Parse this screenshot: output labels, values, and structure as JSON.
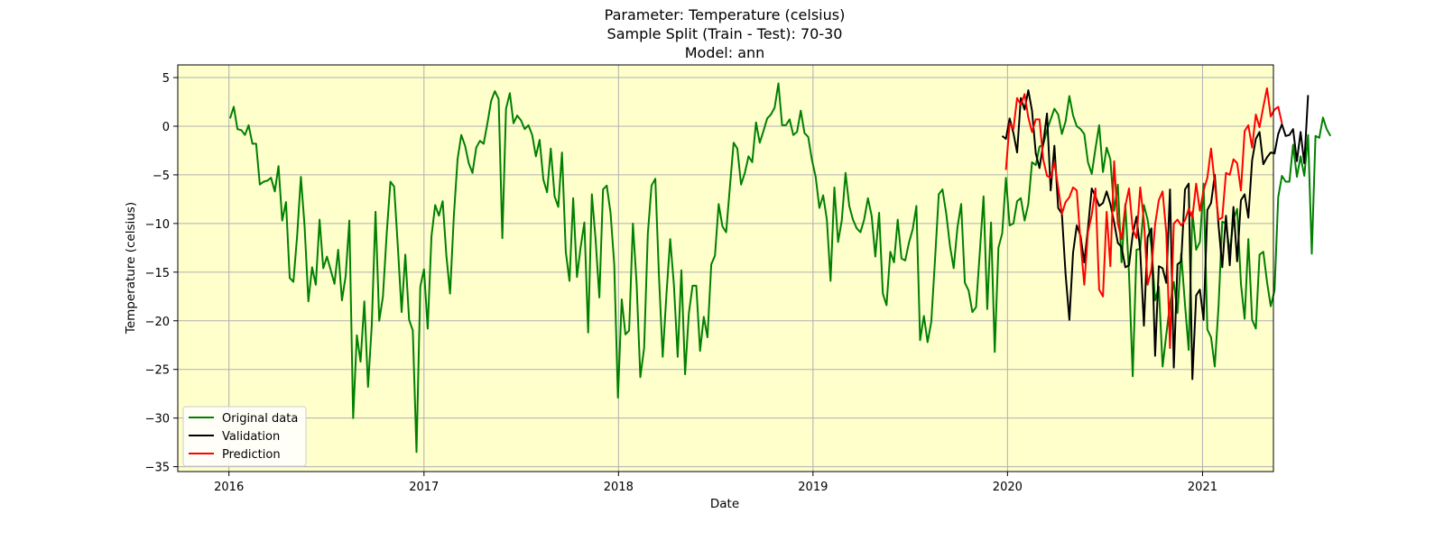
{
  "chart_data": {
    "type": "line",
    "title_lines": [
      "Parameter: Temperature (celsius)",
      "Sample Split (Train - Test): 70-30",
      "Model: ann"
    ],
    "xlabel": "Date",
    "ylabel": "Temperature (celsius)",
    "xlim": [
      "2015-09-27",
      "2021-05-14"
    ],
    "ylim": [
      -35.5,
      6.3
    ],
    "x_ticks": [
      "2016",
      "2017",
      "2018",
      "2019",
      "2020",
      "2021"
    ],
    "y_ticks": [
      5,
      0,
      -5,
      -10,
      -15,
      -20,
      -25,
      -30,
      -35
    ],
    "y_tick_labels": [
      "5",
      "0",
      "−5",
      "−10",
      "−15",
      "−20",
      "−25",
      "−30",
      "−35"
    ],
    "grid": true,
    "background": "#ffffcc",
    "legend": {
      "placement": "lower-left"
    },
    "series": [
      {
        "name": "Original data",
        "color": "#008000",
        "start": "2016-01-03",
        "step_days": 7,
        "values": [
          0.8,
          2.0,
          -0.3,
          -0.4,
          -0.9,
          0.1,
          -1.8,
          -1.8,
          -6.0,
          -5.7,
          -5.6,
          -5.3,
          -6.7,
          -4.1,
          -9.7,
          -7.8,
          -15.6,
          -16.0,
          -11.2,
          -5.2,
          -10.3,
          -18.0,
          -14.5,
          -16.3,
          -9.6,
          -14.6,
          -13.4,
          -14.8,
          -16.2,
          -12.7,
          -17.9,
          -15.4,
          -9.7,
          -30.0,
          -21.5,
          -24.2,
          -18.0,
          -26.8,
          -20.5,
          -8.8,
          -20.0,
          -17.5,
          -11.0,
          -5.7,
          -6.2,
          -12.5,
          -19.1,
          -13.2,
          -19.9,
          -21.0,
          -33.5,
          -16.5,
          -14.7,
          -20.8,
          -11.3,
          -8.1,
          -9.2,
          -7.7,
          -13.3,
          -17.2,
          -9.2,
          -3.4,
          -0.9,
          -2.0,
          -3.8,
          -4.8,
          -2.2,
          -1.5,
          -1.8,
          0.3,
          2.6,
          3.6,
          2.8,
          -11.5,
          1.8,
          3.4,
          0.3,
          1.1,
          0.6,
          -0.3,
          0.1,
          -0.9,
          -3.1,
          -1.4,
          -5.5,
          -6.8,
          -2.3,
          -7.2,
          -8.3,
          -2.7,
          -12.9,
          -15.9,
          -7.4,
          -15.5,
          -12.4,
          -9.9,
          -21.2,
          -7.0,
          -11.6,
          -17.6,
          -6.5,
          -6.1,
          -8.9,
          -14.2,
          -27.9,
          -17.8,
          -21.4,
          -21.0,
          -10.0,
          -16.2,
          -25.8,
          -22.8,
          -11.1,
          -6.1,
          -5.4,
          -15.5,
          -23.7,
          -17.2,
          -11.6,
          -16.3,
          -23.7,
          -14.8,
          -25.5,
          -19.2,
          -16.4,
          -16.4,
          -23.1,
          -19.6,
          -21.7,
          -14.2,
          -13.3,
          -8.0,
          -10.3,
          -10.9,
          -6.3,
          -1.7,
          -2.3,
          -6.0,
          -4.8,
          -3.1,
          -3.7,
          0.4,
          -1.7,
          -0.5,
          0.8,
          1.2,
          1.9,
          4.4,
          0.1,
          0.1,
          0.7,
          -0.9,
          -0.6,
          1.6,
          -0.7,
          -1.1,
          -3.5,
          -5.2,
          -8.4,
          -7.1,
          -9.6,
          -15.9,
          -6.3,
          -11.9,
          -9.7,
          -4.8,
          -8.2,
          -9.6,
          -10.5,
          -10.9,
          -9.6,
          -7.4,
          -9.2,
          -13.4,
          -8.9,
          -17.2,
          -18.4,
          -12.9,
          -14.0,
          -9.6,
          -13.6,
          -13.8,
          -12.0,
          -10.6,
          -8.2,
          -22.0,
          -19.5,
          -22.2,
          -20.1,
          -13.6,
          -7.0,
          -6.5,
          -9.0,
          -12.3,
          -14.6,
          -10.4,
          -8.0,
          -16.1,
          -16.9,
          -19.1,
          -18.6,
          -12.9,
          -7.2,
          -18.8,
          -9.9,
          -23.2,
          -12.5,
          -11.0,
          -5.3,
          -10.2,
          -10.0,
          -7.7,
          -7.4,
          -9.7,
          -8.0,
          -3.7,
          -4.0,
          -2.1,
          -1.9,
          -0.4,
          0.7,
          1.8,
          1.2,
          -0.8,
          0.5,
          3.1,
          1.1,
          0.0,
          -0.3,
          -0.8,
          -3.7,
          -4.9,
          -2.3,
          0.1,
          -4.7,
          -2.2,
          -3.4,
          -8.7,
          -6.0,
          -14.0,
          -8.0,
          -15.2,
          -25.7,
          -12.7,
          -12.6,
          -8.1,
          -9.6,
          -12.3,
          -17.9,
          -16.5,
          -24.7,
          -21.4,
          -18.3,
          -16.0,
          -19.2,
          -13.1,
          -18.3,
          -23.0,
          -8.8,
          -12.7,
          -11.9,
          -5.9,
          -20.9,
          -21.7,
          -24.7,
          -18.5,
          -9.8,
          -10.0,
          -13.0,
          -9.6,
          -8.5,
          -16.2,
          -19.8,
          -11.6,
          -19.9,
          -20.8,
          -13.2,
          -12.9,
          -16.0,
          -18.5,
          -16.9,
          -7.3,
          -5.1,
          -5.7,
          -5.7,
          -1.9,
          -5.2,
          -3.1,
          -5.1,
          -0.9,
          -13.1,
          -1.0,
          -1.2,
          0.9,
          -0.3,
          -1.0
        ]
      },
      {
        "name": "Validation",
        "color": "#000000",
        "start": "2019-12-22",
        "step_days": 7,
        "values": [
          -1.0,
          -1.3,
          0.8,
          -0.7,
          -2.7,
          2.9,
          1.7,
          3.7,
          1.6,
          -2.8,
          -4.3,
          -1.8,
          1.3,
          -6.6,
          -2.0,
          -8.4,
          -9.0,
          -15.2,
          -19.9,
          -13.0,
          -10.2,
          -11.3,
          -14.0,
          -10.5,
          -6.4,
          -7.2,
          -8.2,
          -7.9,
          -6.7,
          -8.0,
          -9.9,
          -12.0,
          -12.4,
          -14.5,
          -14.3,
          -11.1,
          -9.3,
          -12.8,
          -20.5,
          -11.4,
          -10.5,
          -23.6,
          -14.4,
          -14.6,
          -16.1,
          -6.5,
          -24.8,
          -14.2,
          -13.9,
          -6.5,
          -5.9,
          -26.0,
          -17.4,
          -16.8,
          -19.9,
          -8.6,
          -7.9,
          -5.0,
          -10.2,
          -14.5,
          -9.2,
          -14.3,
          -8.3,
          -13.9,
          -7.6,
          -7.0,
          -9.4,
          -3.5,
          -1.3,
          -0.6,
          -3.9,
          -3.2,
          -2.7,
          -2.8,
          -0.8,
          0.2,
          -1.0,
          -0.9,
          -0.3,
          -3.6,
          -0.6,
          -3.8,
          3.2
        ]
      },
      {
        "name": "Prediction",
        "color": "#ff0000",
        "start": "2019-12-29",
        "step_days": 7,
        "values": [
          -4.5,
          0.3,
          -0.3,
          2.9,
          2.2,
          3.3,
          0.9,
          -0.6,
          0.7,
          0.7,
          -3.4,
          -5.1,
          -5.3,
          -3.7,
          -6.3,
          -9.0,
          -7.8,
          -7.3,
          -6.3,
          -6.6,
          -11.9,
          -16.3,
          -10.9,
          -9.1,
          -6.4,
          -16.8,
          -17.5,
          -8.8,
          -14.4,
          -3.6,
          -10.0,
          -11.6,
          -8.2,
          -6.4,
          -10.6,
          -11.5,
          -6.3,
          -9.7,
          -16.3,
          -14.7,
          -10.1,
          -7.6,
          -6.7,
          -11.0,
          -22.8,
          -10.0,
          -9.6,
          -10.2,
          -9.7,
          -8.5,
          -9.4,
          -5.9,
          -8.7,
          -6.6,
          -5.3,
          -2.3,
          -5.9,
          -9.6,
          -9.4,
          -4.8,
          -5.0,
          -3.4,
          -3.8,
          -6.6,
          -0.5,
          0.1,
          -2.2,
          1.2,
          -0.1,
          2.0,
          3.9,
          1.0,
          1.7,
          2.0,
          0.3
        ]
      }
    ]
  }
}
